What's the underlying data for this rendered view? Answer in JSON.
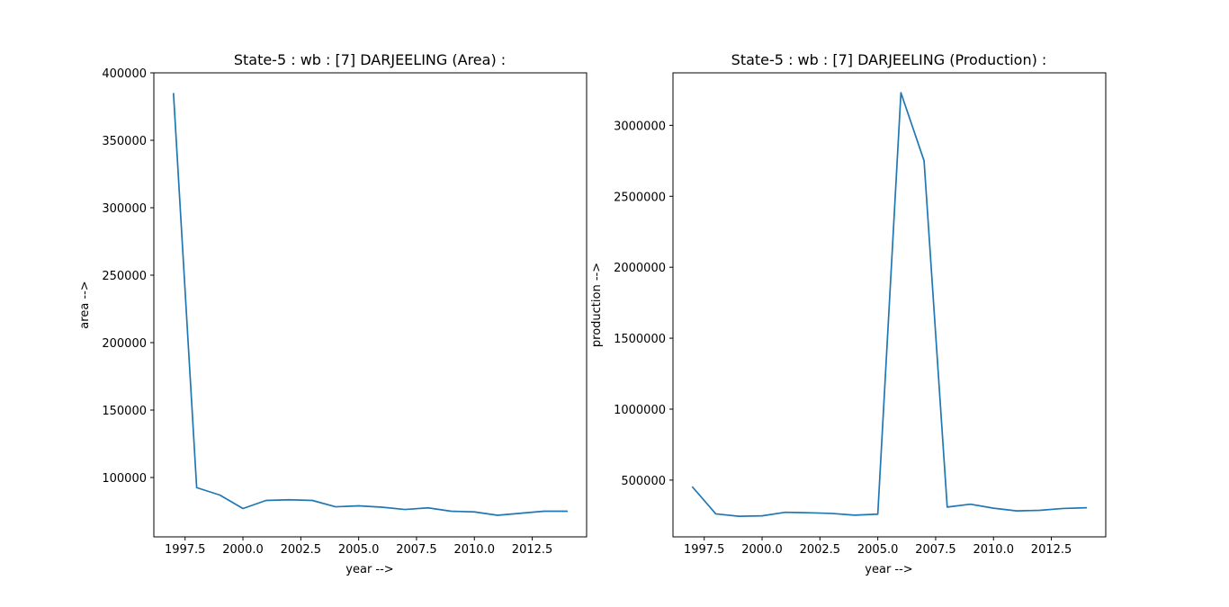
{
  "chart_data": [
    {
      "type": "line",
      "title": "State-5 : wb : [7] DARJEELING (Area) :",
      "xlabel": "year -->",
      "ylabel": "area -->",
      "xlim": [
        1996.15,
        2014.85
      ],
      "ylim": [
        56000,
        400000
      ],
      "xticks": [
        1997.5,
        2000.0,
        2002.5,
        2005.0,
        2007.5,
        2010.0,
        2012.5
      ],
      "xtick_labels": [
        "1997.5",
        "2000.0",
        "2002.5",
        "2005.0",
        "2007.5",
        "2010.0",
        "2012.5"
      ],
      "yticks": [
        100000,
        150000,
        200000,
        250000,
        300000,
        350000,
        400000
      ],
      "ytick_labels": [
        "100000",
        "150000",
        "200000",
        "250000",
        "300000",
        "350000",
        "400000"
      ],
      "grid": false,
      "color": "#1f77b4",
      "x": [
        1997,
        1998,
        1999,
        2000,
        2001,
        2002,
        2003,
        2004,
        2005,
        2006,
        2007,
        2008,
        2009,
        2010,
        2011,
        2012,
        2013,
        2014
      ],
      "y": [
        384500,
        92500,
        87000,
        77000,
        83000,
        83500,
        83000,
        78300,
        79000,
        78000,
        76300,
        77500,
        75000,
        74500,
        72000,
        73500,
        75000,
        75000
      ]
    },
    {
      "type": "line",
      "title": "State-5 : wb : [7] DARJEELING (Production) :",
      "xlabel": "year -->",
      "ylabel": "production -->",
      "xlim": [
        1996.15,
        2014.85
      ],
      "ylim": [
        100000,
        3370000
      ],
      "xticks": [
        1997.5,
        2000.0,
        2002.5,
        2005.0,
        2007.5,
        2010.0,
        2012.5
      ],
      "xtick_labels": [
        "1997.5",
        "2000.0",
        "2002.5",
        "2005.0",
        "2007.5",
        "2010.0",
        "2012.5"
      ],
      "yticks": [
        500000,
        1000000,
        1500000,
        2000000,
        2500000,
        3000000
      ],
      "ytick_labels": [
        "500000",
        "1000000",
        "1500000",
        "2000000",
        "2500000",
        "3000000"
      ],
      "grid": false,
      "color": "#1f77b4",
      "x": [
        1997,
        1998,
        1999,
        2000,
        2001,
        2002,
        2003,
        2004,
        2005,
        2006,
        2007,
        2008,
        2009,
        2010,
        2011,
        2012,
        2013,
        2014
      ],
      "y": [
        450000,
        262000,
        245000,
        248000,
        273000,
        270000,
        265000,
        253000,
        260000,
        3230000,
        2750000,
        310000,
        330000,
        302000,
        283000,
        287000,
        300000,
        305000
      ]
    }
  ]
}
